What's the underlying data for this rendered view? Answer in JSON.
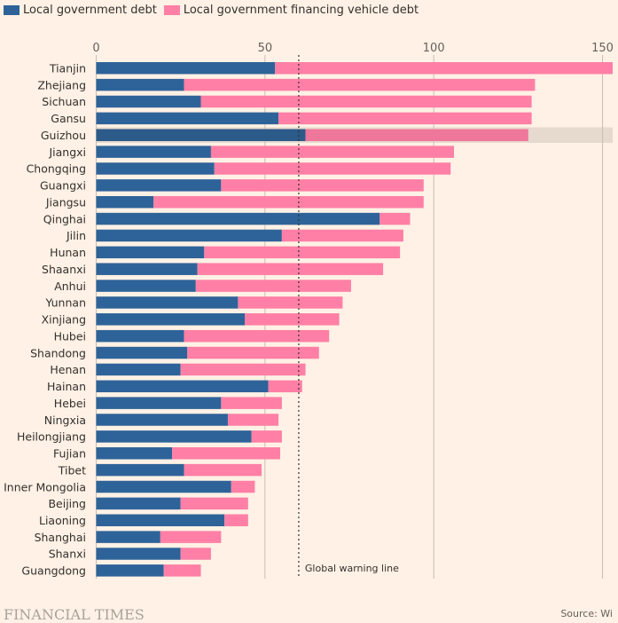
{
  "legend": [
    {
      "label": "Local government debt",
      "color": "#2e6399"
    },
    {
      "label": "Local government financing vehicle debt",
      "color": "#ff7fa6"
    }
  ],
  "footer": {
    "brand": "FINANCIAL TIMES",
    "source": "Source: Wi"
  },
  "chart_data": {
    "type": "bar",
    "orientation": "horizontal",
    "stacked": true,
    "title": "",
    "xlabel": "",
    "ylabel": "",
    "xlim": [
      0,
      153
    ],
    "x_ticks": [
      0,
      50,
      100,
      150
    ],
    "grid": true,
    "legend_position": "top-left",
    "highlighted_category": "Guizhou",
    "reference_line": {
      "value": 60,
      "label": "Global warning line",
      "style": "dashed"
    },
    "categories": [
      "Tianjin",
      "Zhejiang",
      "Sichuan",
      "Gansu",
      "Guizhou",
      "Jiangxi",
      "Chongqing",
      "Guangxi",
      "Jiangsu",
      "Qinghai",
      "Jilin",
      "Hunan",
      "Shaanxi",
      "Anhui",
      "Yunnan",
      "Xinjiang",
      "Hubei",
      "Shandong",
      "Henan",
      "Hainan",
      "Hebei",
      "Ningxia",
      "Heilongjiang",
      "Fujian",
      "Tibet",
      "Inner Mongolia",
      "Beijing",
      "Liaoning",
      "Shanghai",
      "Shanxi",
      "Guangdong"
    ],
    "series": [
      {
        "name": "Local government debt",
        "color": "#2e6399",
        "values": [
          53,
          26,
          31,
          54,
          62,
          34,
          35,
          37,
          17,
          84,
          55,
          32,
          30,
          29.5,
          42,
          44,
          26,
          27,
          25,
          51,
          37,
          39,
          46,
          22.5,
          26,
          40,
          25,
          38,
          19,
          25,
          20
        ]
      },
      {
        "name": "Local government financing vehicle debt",
        "color": "#ff7fa6",
        "values": [
          100,
          104,
          98,
          75,
          66,
          72,
          70,
          60,
          80,
          9,
          36,
          58,
          55,
          46,
          31,
          28,
          43,
          39,
          37,
          10,
          18,
          15,
          9,
          32,
          23,
          7,
          20,
          7,
          18,
          9,
          11
        ]
      }
    ]
  }
}
